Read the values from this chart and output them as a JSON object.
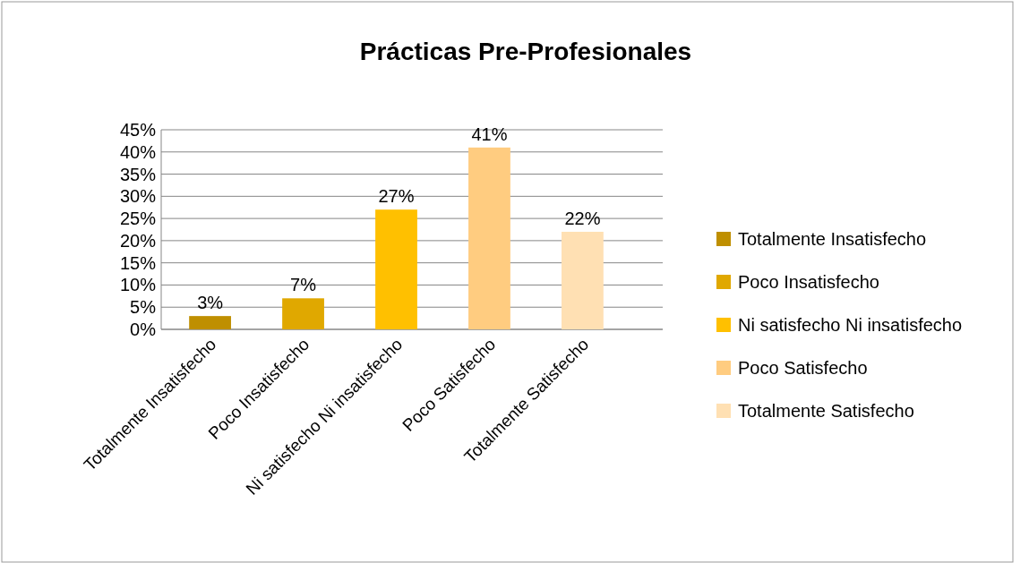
{
  "chart_data": {
    "type": "bar",
    "title": "Prácticas Pre-Profesionales",
    "categories": [
      "Totalmente Insatisfecho",
      "Poco Insatisfecho",
      "Ni satisfecho Ni insatisfecho",
      "Poco Satisfecho",
      "Totalmente Satisfecho"
    ],
    "stacked": true,
    "series": [
      {
        "name": "Totalmente Insatisfecho",
        "color": "#bf8f00",
        "values": [
          3,
          null,
          null,
          null,
          null
        ],
        "value_labels": [
          "3%",
          null,
          null,
          null,
          null
        ]
      },
      {
        "name": "Poco Insatisfecho",
        "color": "#e0a800",
        "values": [
          null,
          7,
          null,
          null,
          null
        ],
        "value_labels": [
          null,
          "7%",
          null,
          null,
          null
        ]
      },
      {
        "name": "Ni satisfecho Ni insatisfecho",
        "color": "#ffc000",
        "values": [
          null,
          null,
          27,
          null,
          null
        ],
        "value_labels": [
          null,
          null,
          "27%",
          null,
          null
        ]
      },
      {
        "name": "Poco Satisfecho",
        "color": "#ffcc80",
        "values": [
          null,
          null,
          null,
          41,
          null
        ],
        "value_labels": [
          null,
          null,
          null,
          "41%",
          null
        ]
      },
      {
        "name": "Totalmente Satisfecho",
        "color": "#ffe0b3",
        "values": [
          null,
          null,
          null,
          null,
          22
        ],
        "value_labels": [
          null,
          null,
          null,
          null,
          "22%"
        ]
      }
    ],
    "ylim": [
      0,
      45
    ],
    "yticks": [
      {
        "value": 0,
        "label": "0%"
      },
      {
        "value": 5,
        "label": "5%"
      },
      {
        "value": 10,
        "label": "10%"
      },
      {
        "value": 15,
        "label": "15%"
      },
      {
        "value": 20,
        "label": "20%"
      },
      {
        "value": 25,
        "label": "25%"
      },
      {
        "value": 30,
        "label": "30%"
      },
      {
        "value": 35,
        "label": "35%"
      },
      {
        "value": 40,
        "label": "40%"
      },
      {
        "value": 45,
        "label": "45%"
      }
    ],
    "grid": "y",
    "legend": "right"
  }
}
